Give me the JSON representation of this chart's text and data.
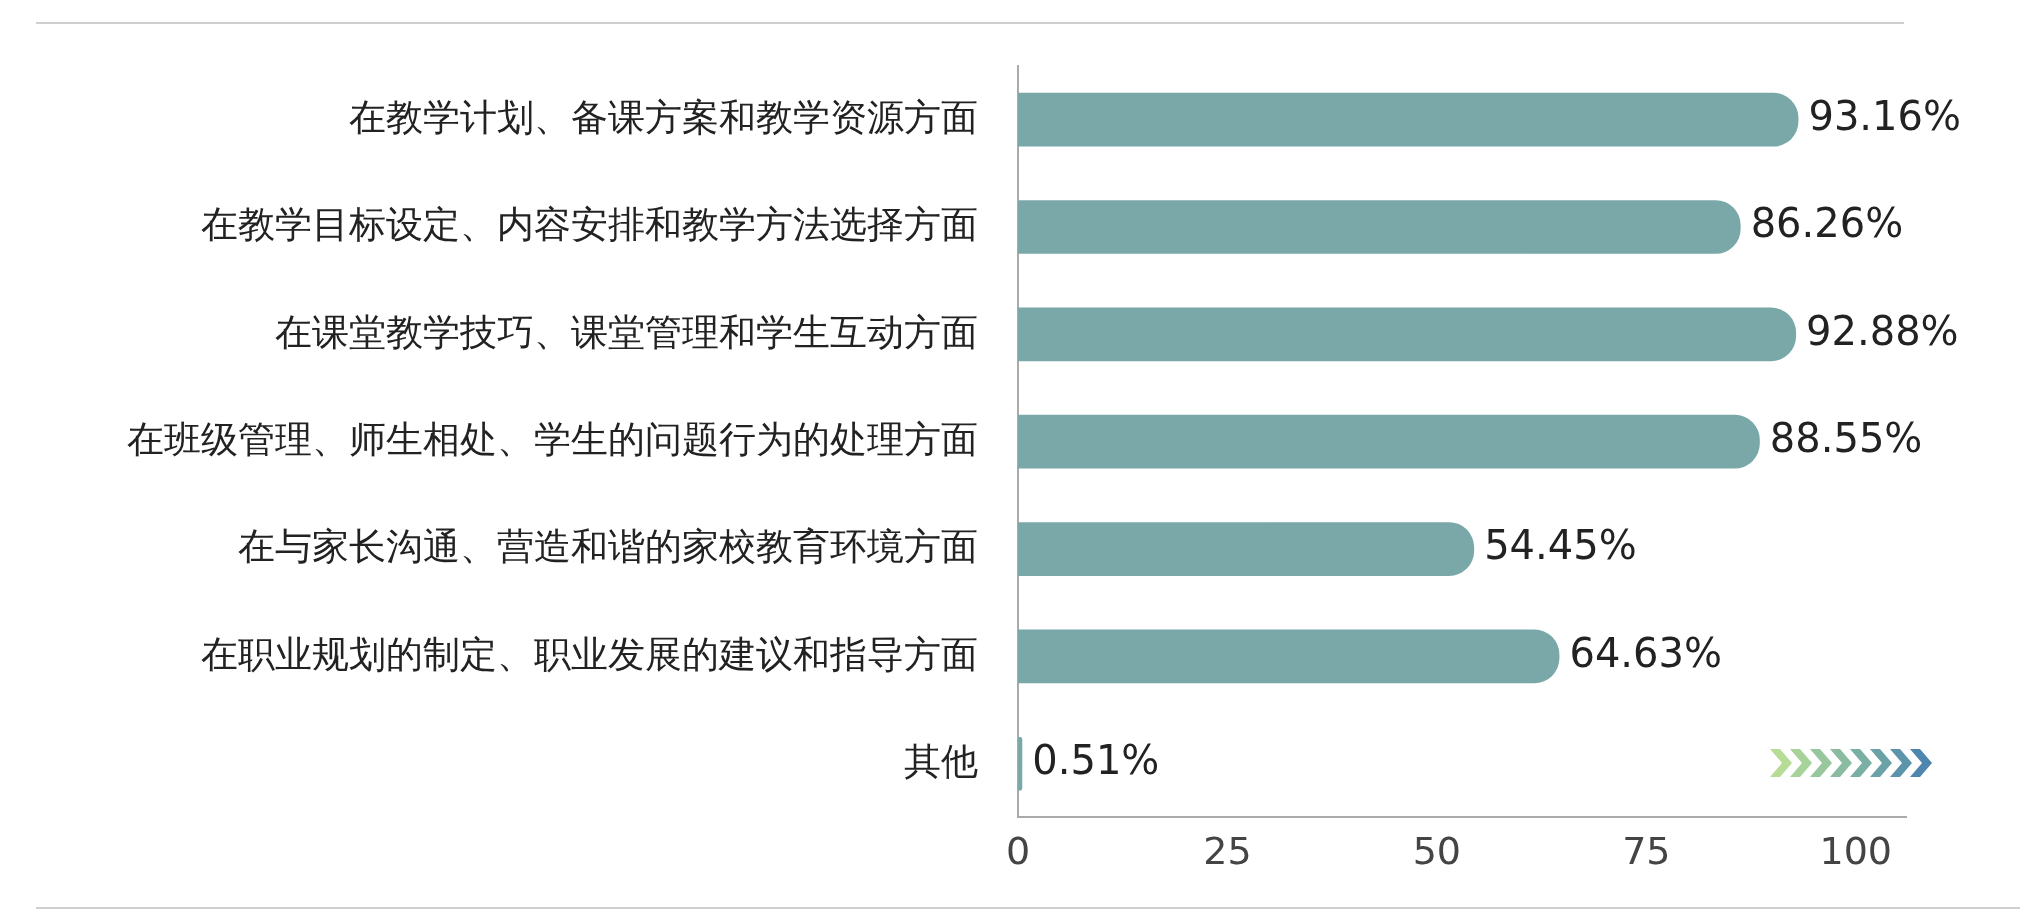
{
  "chart_data": {
    "type": "bar",
    "orientation": "horizontal",
    "categories": [
      "在教学计划、备课方案和教学资源方面",
      "在教学目标设定、内容安排和教学方法选择方面",
      "在课堂教学技巧、课堂管理和学生互动方面",
      "在班级管理、师生相处、学生的问题行为的处理方面",
      "在与家长沟通、营造和谐的家校教育环境方面",
      "在职业规划的制定、职业发展的建议和指导方面",
      "其他"
    ],
    "values": [
      93.16,
      86.26,
      92.88,
      88.55,
      54.45,
      64.63,
      0.51
    ],
    "value_labels": [
      "93.16%",
      "86.26%",
      "92.88%",
      "88.55%",
      "54.45%",
      "64.63%",
      "0.51%"
    ],
    "color": "#7aa8a8",
    "xlim": [
      0,
      106
    ],
    "xticks": [
      0,
      25,
      50,
      75,
      100
    ],
    "grid": false,
    "legend": false
  }
}
